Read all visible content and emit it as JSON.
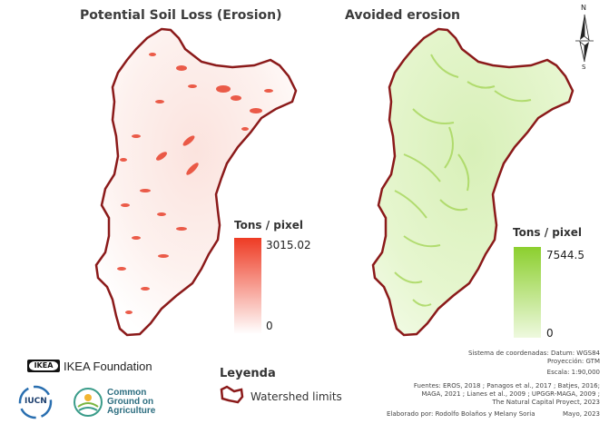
{
  "maps": {
    "left": {
      "title": "Potential Soil Loss (Erosion)",
      "legend_title": "Tons / pixel",
      "max_label": "3015.02",
      "min_label": "0",
      "ramp_color_high": "#ee3b24",
      "ramp_color_low": "#ffffff",
      "outline_color": "#8b1a1a"
    },
    "right": {
      "title": "Avoided erosion",
      "legend_title": "Tons / pixel",
      "max_label": "7544.5",
      "min_label": "0",
      "ramp_color_high": "#8ccf2e",
      "ramp_color_low": "#eef9df",
      "outline_color": "#8b1a1a"
    }
  },
  "north_arrow": {
    "n": "N",
    "s": "S"
  },
  "legend": {
    "title": "Leyenda",
    "item_label": "Watershed limits"
  },
  "metadata": {
    "line1": "Sistema de coordenadas: Datum: WGS84",
    "line2": "Proyección: GTM",
    "line3": "Escala: 1:90,000",
    "sources1": "Fuentes: EROS, 2018 ; Panagos et al., 2017 ; Batjes, 2016;",
    "sources2": "MAGA, 2021 ; Lianes et al., 2009 ; UPGGR-MAGA, 2009 ;",
    "sources3": "The Natural Capital Proyect, 2023",
    "author": "Elaborado por: Rodolfo Bolaños y Melany Soria",
    "date": "Mayo, 2023"
  },
  "logos": {
    "ikea_mark": "IKEA",
    "ikea_label": "IKEA Foundation",
    "iucn": "IUCN",
    "cg_line1": "Common",
    "cg_line2": "Ground on",
    "cg_line3": "Agriculture"
  }
}
